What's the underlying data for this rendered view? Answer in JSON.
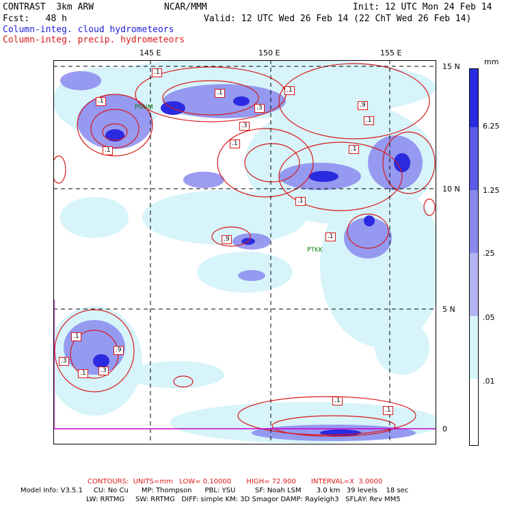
{
  "header": {
    "model": "CONTRAST  3km ARW",
    "org": "NCAR/MMM",
    "init": "Init: 12 UTC Mon 24 Feb 14",
    "fcst": "Fcst:   48 h",
    "valid": "Valid: 12 UTC Wed 26 Feb 14 (22 ChT Wed 26 Feb 14)",
    "legend_blue": "Column-integ. cloud hydrometeors",
    "legend_red": "Column-integ. precip. hydrometeors"
  },
  "axes": {
    "lon_labels": [
      "145 E",
      "150 E",
      "155 E"
    ],
    "lat_labels": [
      "15 N",
      "10 N",
      "5 N",
      "0"
    ]
  },
  "colorbar": {
    "unit": "mm",
    "labels": [
      "6.25",
      "1.25",
      ".25",
      ".05",
      ".01"
    ],
    "colors": [
      "#2a2ae0",
      "#5a5ae6",
      "#8a8aee",
      "#b4b4f4",
      "#d6f4fa",
      "#ffffff"
    ]
  },
  "stations": [
    "PGUM",
    "PTKK"
  ],
  "contour_labels": [
    ".1",
    ".1",
    ".1",
    ".1",
    ".3",
    ".3",
    ".1",
    ".1",
    ".9",
    ".1",
    ".1",
    ".1",
    ".1",
    ".9",
    ".1",
    ".3",
    ".9",
    ".1",
    ".3",
    ".1",
    ".1"
  ],
  "footer": {
    "contours": "CONTOURS:  UNITS=mm   LOW= 0.10000       HIGH= 72.900       INTERVAL=X  3.0000",
    "model_line1": "Model Info: V3.5.1     CU: No Cu      MP: Thompson      PBL: YSU         SF: Noah LSM       3.0 km   39 levels    18 sec",
    "model_line2": "LW: RRTMG     SW: RRTMG   DIFF: simple KM: 3D Smagor DAMP: Rayleigh3   SFLAY: Rev MM5"
  }
}
